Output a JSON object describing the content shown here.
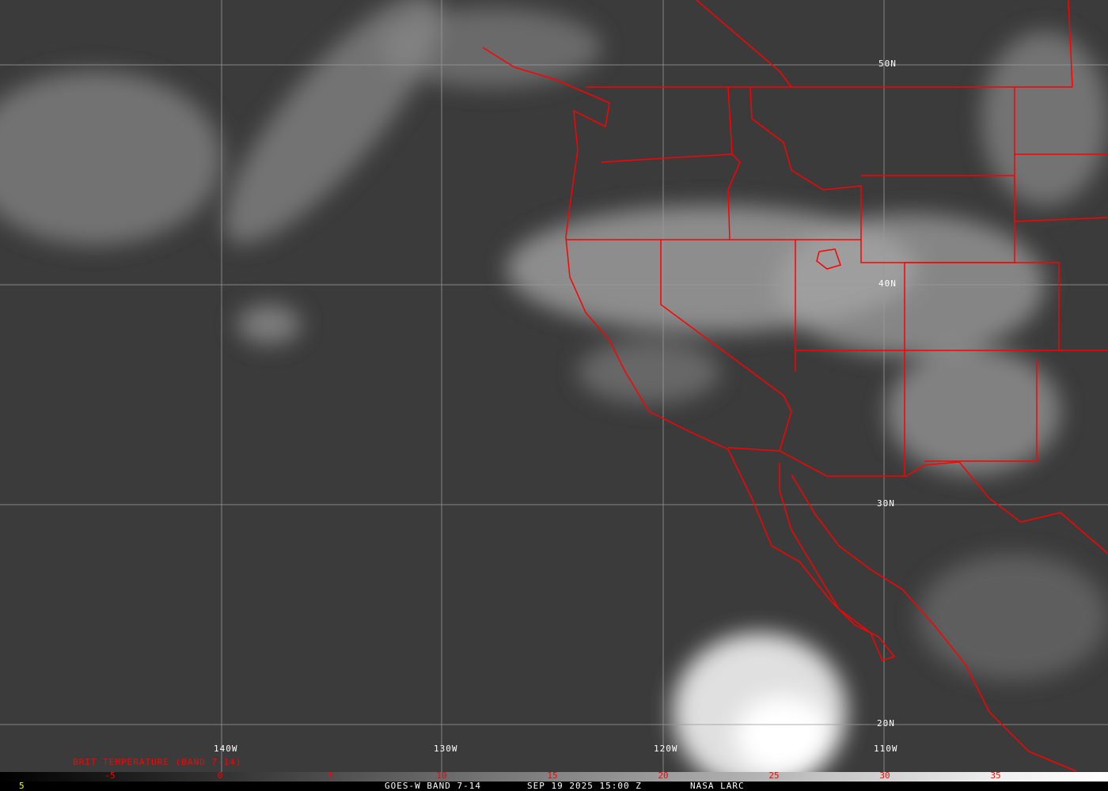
{
  "image": {
    "satellite": "GOES-W",
    "band": "BAND 7-14",
    "product_label": "BRIT TEMPERATURE (BAND 7-14)",
    "footer": {
      "frame_number": "5",
      "title": "GOES-W BAND 7-14",
      "datetime": "SEP 19 2025 15:00 Z",
      "credit": "NASA LARC"
    },
    "colorbar_ticks": [
      "-5",
      "0",
      "5",
      "10",
      "15",
      "20",
      "25",
      "30",
      "35"
    ],
    "longitude_labels": [
      "140W",
      "130W",
      "120W",
      "110W"
    ],
    "latitude_labels": [
      "50N",
      "40N",
      "30N",
      "20N"
    ],
    "colors": {
      "borders": "#ff0000",
      "grid": "#9a9a9a",
      "footer_frame": "#ffff00"
    }
  }
}
